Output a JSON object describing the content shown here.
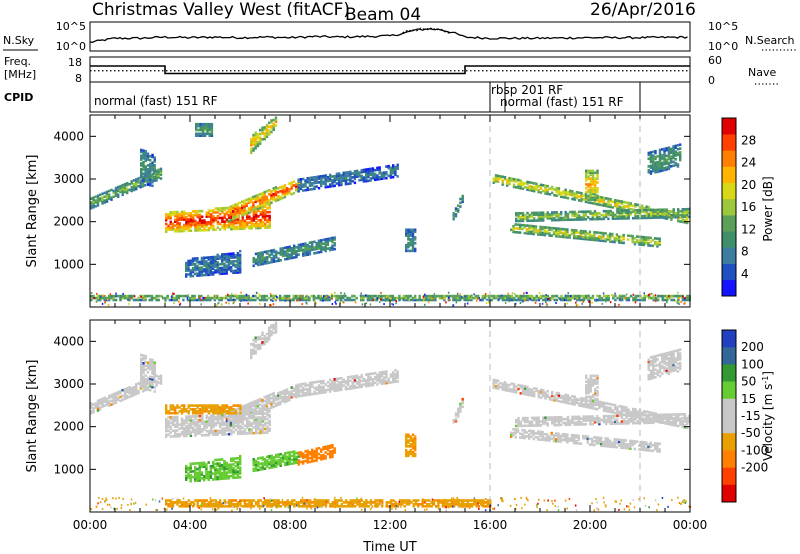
{
  "header": {
    "station": "Christmas Valley West (fitACF)",
    "beam": "Beam 04",
    "date": "26/Apr/2016"
  },
  "noise_panel": {
    "left_label": "N.Sky",
    "left_ticks": [
      "10^5",
      "10^0"
    ],
    "right_label": "N.Search",
    "right_ticks": [
      "10^5",
      "10^0"
    ]
  },
  "freq_panel": {
    "left_label_line1": "Freq.",
    "left_label_line2": "[MHz]",
    "left_ticks": [
      "18",
      "8"
    ],
    "right_label": "Nave",
    "right_ticks": [
      "60",
      "0"
    ]
  },
  "cpid_panel": {
    "label": "CPID",
    "segments": [
      {
        "name": "normal (fast) 151 RF",
        "start_h": 0,
        "end_h": 16
      },
      {
        "name": "rbsp 201 RF",
        "start_h": 16,
        "end_h": 16.6
      },
      {
        "name": "normal (fast) 151 RF",
        "start_h": 16.6,
        "end_h": 24
      }
    ]
  },
  "colors": {
    "power": [
      "#1414ff",
      "#2050c0",
      "#3c7ea0",
      "#3e8f6a",
      "#5aa05a",
      "#9cc83c",
      "#d8d818",
      "#ffb400",
      "#ff8000",
      "#ff4000",
      "#e00000"
    ],
    "velocity": [
      "#e00000",
      "#ff4000",
      "#ff8000",
      "#e8a000",
      "#c8c8c8",
      "#c8c8c8",
      "#66cc33",
      "#339933",
      "#336699",
      "#2040c0"
    ],
    "ground_scatter": "#c8c8c8"
  },
  "chart_data": [
    {
      "type": "line",
      "title": "Christmas Valley West (fitACF) Beam 04 26/Apr/2016",
      "ylabel": "N.Sky",
      "y2label": "N.Search",
      "scale": "log",
      "xlim": [
        0,
        24
      ],
      "series": [
        {
          "name": "N.Sky",
          "x": [
            0,
            1,
            2,
            3,
            4,
            5,
            6,
            7,
            8,
            9,
            10,
            11,
            12,
            12.5,
            13,
            13.5,
            14,
            14.5,
            15,
            16,
            18,
            20,
            22,
            24
          ],
          "values": [
            1.5,
            2.2,
            2.2,
            2.4,
            2.3,
            2.4,
            2.3,
            2.4,
            2.3,
            2.5,
            2.4,
            2.5,
            2.6,
            3.0,
            3.6,
            3.8,
            3.7,
            3.2,
            2.4,
            2.2,
            2.2,
            2.3,
            2.3,
            2.4
          ]
        }
      ]
    },
    {
      "type": "line",
      "ylabel": "Freq. [MHz]",
      "y2label": "Nave",
      "ylim": [
        8,
        18
      ],
      "y2lim": [
        0,
        60
      ],
      "xlim": [
        0,
        24
      ],
      "series": [
        {
          "name": "Freq.",
          "x": [
            0,
            3,
            3,
            15,
            15,
            24
          ],
          "values": [
            14.4,
            14.4,
            11.4,
            11.4,
            14.4,
            14.4
          ]
        },
        {
          "name": "Nave",
          "x": [
            0,
            24
          ],
          "values": [
            27,
            27
          ]
        }
      ]
    },
    {
      "type": "heatmap",
      "ylabel": "Slant Range [km]",
      "colorbar_label": "Power [dB]",
      "colorbar_ticks": [
        4,
        8,
        12,
        16,
        20,
        24,
        28
      ],
      "clim": [
        0,
        32
      ],
      "xlim": [
        0,
        24
      ],
      "ylim": [
        0,
        4500
      ],
      "yticks": [
        1000,
        2000,
        3000,
        4000
      ],
      "features": [
        {
          "t0": 0.0,
          "t1": 2.8,
          "r0": 2300,
          "r1": 2550,
          "r0b": 3000,
          "r1b": 3250,
          "v": 14
        },
        {
          "t0": 2.0,
          "t1": 2.6,
          "r0": 2900,
          "r1": 3700,
          "r0b": 2800,
          "r1b": 3500,
          "v": 10
        },
        {
          "t0": 3.0,
          "t1": 7.2,
          "r0": 1750,
          "r1": 2200,
          "r0b": 1850,
          "r1b": 2400,
          "v": 30
        },
        {
          "t0": 5.5,
          "t1": 8.3,
          "r0": 2000,
          "r1": 2350,
          "r0b": 2700,
          "r1b": 3000,
          "v": 27
        },
        {
          "t0": 6.4,
          "t1": 7.4,
          "r0": 3600,
          "r1": 4000,
          "r0b": 4200,
          "r1b": 4450,
          "v": 22
        },
        {
          "t0": 4.2,
          "t1": 4.9,
          "r0": 4000,
          "r1": 4300,
          "r0b": 4000,
          "r1b": 4300,
          "v": 12
        },
        {
          "t0": 3.8,
          "t1": 6.0,
          "r0": 700,
          "r1": 1100,
          "r0b": 800,
          "r1b": 1300,
          "v": 8
        },
        {
          "t0": 6.5,
          "t1": 9.8,
          "r0": 950,
          "r1": 1250,
          "r0b": 1350,
          "r1b": 1650,
          "v": 11
        },
        {
          "t0": 8.3,
          "t1": 12.3,
          "r0": 2700,
          "r1": 3000,
          "r0b": 3050,
          "r1b": 3350,
          "v": 8
        },
        {
          "t0": 12.6,
          "t1": 13.0,
          "r0": 1300,
          "r1": 1800,
          "r0b": 1300,
          "r1b": 1800,
          "v": 10
        },
        {
          "t0": 14.5,
          "t1": 14.9,
          "r0": 2000,
          "r1": 2200,
          "r0b": 2500,
          "r1b": 2700,
          "v": 12
        },
        {
          "t0": 16.1,
          "t1": 23.9,
          "r0": 2900,
          "r1": 3100,
          "r0b": 1950,
          "r1b": 2150,
          "v": 20
        },
        {
          "t0": 17.0,
          "t1": 24.0,
          "r0": 2000,
          "r1": 2200,
          "r0b": 2100,
          "r1b": 2300,
          "v": 16
        },
        {
          "t0": 16.8,
          "t1": 22.8,
          "r0": 1750,
          "r1": 1950,
          "r0b": 1400,
          "r1b": 1600,
          "v": 18
        },
        {
          "t0": 19.8,
          "t1": 20.3,
          "r0": 2500,
          "r1": 3200,
          "r0b": 2500,
          "r1b": 3200,
          "v": 22
        },
        {
          "t0": 22.3,
          "t1": 23.6,
          "r0": 3100,
          "r1": 3600,
          "r0b": 3300,
          "r1b": 3800,
          "v": 12
        },
        {
          "t0": 0.0,
          "t1": 24.0,
          "r0": 150,
          "r1": 280,
          "r0b": 150,
          "r1b": 280,
          "v": 15
        }
      ]
    },
    {
      "type": "heatmap",
      "ylabel": "Slant Range [km]",
      "colorbar_label": "Velocity [m s^-1]",
      "colorbar_ticks": [
        200,
        100,
        50,
        15,
        -15,
        -50,
        -100,
        -200
      ],
      "clim": [
        -250,
        250
      ],
      "xlim": [
        0,
        24
      ],
      "xticks": [
        "00:00",
        "04:00",
        "08:00",
        "12:00",
        "16:00",
        "20:00",
        "00:00"
      ],
      "xlabel": "Time UT",
      "ylim": [
        0,
        4500
      ],
      "yticks": [
        1000,
        2000,
        3000,
        4000
      ],
      "features": [
        {
          "t0": 0.0,
          "t1": 2.8,
          "r0": 2300,
          "r1": 2550,
          "r0b": 3000,
          "r1b": 3250,
          "v": 0
        },
        {
          "t0": 2.0,
          "t1": 2.6,
          "r0": 2900,
          "r1": 3700,
          "r0b": 2800,
          "r1b": 3500,
          "v": 0
        },
        {
          "t0": 3.0,
          "t1": 7.2,
          "r0": 1750,
          "r1": 2200,
          "r0b": 1850,
          "r1b": 2400,
          "v": 0
        },
        {
          "t0": 5.5,
          "t1": 8.3,
          "r0": 2000,
          "r1": 2350,
          "r0b": 2700,
          "r1b": 3000,
          "v": 0
        },
        {
          "t0": 6.4,
          "t1": 7.4,
          "r0": 3600,
          "r1": 4000,
          "r0b": 4200,
          "r1b": 4450,
          "v": 0
        },
        {
          "t0": 3.0,
          "t1": 6.0,
          "r0": 2300,
          "r1": 2500,
          "r0b": 2300,
          "r1b": 2500,
          "v": -40
        },
        {
          "t0": 3.8,
          "t1": 6.0,
          "r0": 700,
          "r1": 1100,
          "r0b": 800,
          "r1b": 1300,
          "v": 40
        },
        {
          "t0": 6.5,
          "t1": 8.3,
          "r0": 950,
          "r1": 1250,
          "r0b": 1150,
          "r1b": 1450,
          "v": 40
        },
        {
          "t0": 8.3,
          "t1": 9.8,
          "r0": 1100,
          "r1": 1400,
          "r0b": 1300,
          "r1b": 1600,
          "v": -80
        },
        {
          "t0": 8.3,
          "t1": 12.3,
          "r0": 2700,
          "r1": 3000,
          "r0b": 3050,
          "r1b": 3350,
          "v": 0
        },
        {
          "t0": 12.6,
          "t1": 13.0,
          "r0": 1300,
          "r1": 1800,
          "r0b": 1300,
          "r1b": 1800,
          "v": -40
        },
        {
          "t0": 14.5,
          "t1": 14.9,
          "r0": 2000,
          "r1": 2200,
          "r0b": 2500,
          "r1b": 2700,
          "v": 0
        },
        {
          "t0": 16.1,
          "t1": 23.9,
          "r0": 2900,
          "r1": 3100,
          "r0b": 1950,
          "r1b": 2150,
          "v": 0
        },
        {
          "t0": 17.0,
          "t1": 24.0,
          "r0": 2000,
          "r1": 2200,
          "r0b": 2100,
          "r1b": 2300,
          "v": 0
        },
        {
          "t0": 16.8,
          "t1": 22.8,
          "r0": 1750,
          "r1": 1950,
          "r0b": 1400,
          "r1b": 1600,
          "v": 0
        },
        {
          "t0": 19.8,
          "t1": 20.3,
          "r0": 2500,
          "r1": 3200,
          "r0b": 2500,
          "r1b": 3200,
          "v": 0
        },
        {
          "t0": 22.3,
          "t1": 23.6,
          "r0": 3100,
          "r1": 3600,
          "r0b": 3300,
          "r1b": 3800,
          "v": 0
        },
        {
          "t0": 3.0,
          "t1": 16.0,
          "r0": 120,
          "r1": 300,
          "r0b": 120,
          "r1b": 300,
          "v": -40
        }
      ]
    }
  ]
}
